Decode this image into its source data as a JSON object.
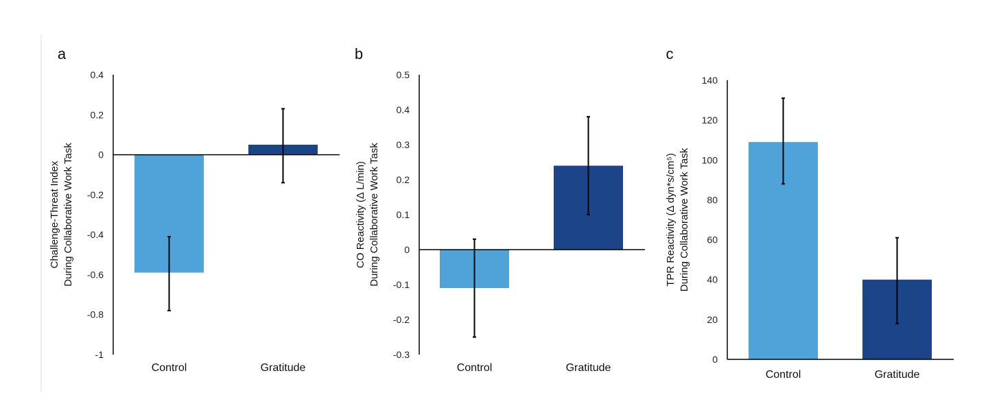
{
  "colors": {
    "control": "#4fa3d9",
    "gratitude": "#1c4489"
  },
  "chart_data": [
    {
      "type": "bar",
      "panel": "a",
      "categories": [
        "Control",
        "Gratitude"
      ],
      "values": [
        -0.59,
        0.05
      ],
      "error_high": [
        -0.41,
        0.23
      ],
      "error_low": [
        -0.78,
        -0.14
      ],
      "ylabel": [
        "Challenge-Threat Index",
        "During Collaborative Work Task"
      ],
      "ylim": [
        -1,
        0.4
      ],
      "yticks": [
        0.4,
        0.2,
        0,
        -0.2,
        -0.4,
        -0.6,
        -0.8,
        -1
      ],
      "ytick_labels": [
        "0.4",
        "0.2",
        "0",
        "-0.2",
        "-0.4",
        "-0.6",
        "-0.8",
        "-1"
      ]
    },
    {
      "type": "bar",
      "panel": "b",
      "categories": [
        "Control",
        "Gratitude"
      ],
      "values": [
        -0.11,
        0.24
      ],
      "error_high": [
        0.03,
        0.38
      ],
      "error_low": [
        -0.25,
        0.1
      ],
      "ylabel": [
        "CO Reactivity (Δ L/min)",
        "During Collaborative Work Task"
      ],
      "ylim": [
        -0.3,
        0.5
      ],
      "yticks": [
        0.5,
        0.4,
        0.3,
        0.2,
        0.1,
        0,
        -0.1,
        -0.2,
        -0.3
      ],
      "ytick_labels": [
        "0.5",
        "0.4",
        "0.3",
        "0.2",
        "0.1",
        "0",
        "-0.1",
        "-0.2",
        "-0.3"
      ]
    },
    {
      "type": "bar",
      "panel": "c",
      "categories": [
        "Control",
        "Gratitude"
      ],
      "values": [
        109,
        40
      ],
      "error_high": [
        131,
        61
      ],
      "error_low": [
        88,
        18
      ],
      "ylabel": [
        "TPR Reactivity (Δ dyn*s/cm⁵)",
        "During Collaborative Work Task"
      ],
      "ylim": [
        0,
        140
      ],
      "yticks": [
        140,
        120,
        100,
        80,
        60,
        40,
        20,
        0
      ],
      "ytick_labels": [
        "140",
        "120",
        "100",
        "80",
        "60",
        "40",
        "20",
        "0"
      ]
    }
  ]
}
